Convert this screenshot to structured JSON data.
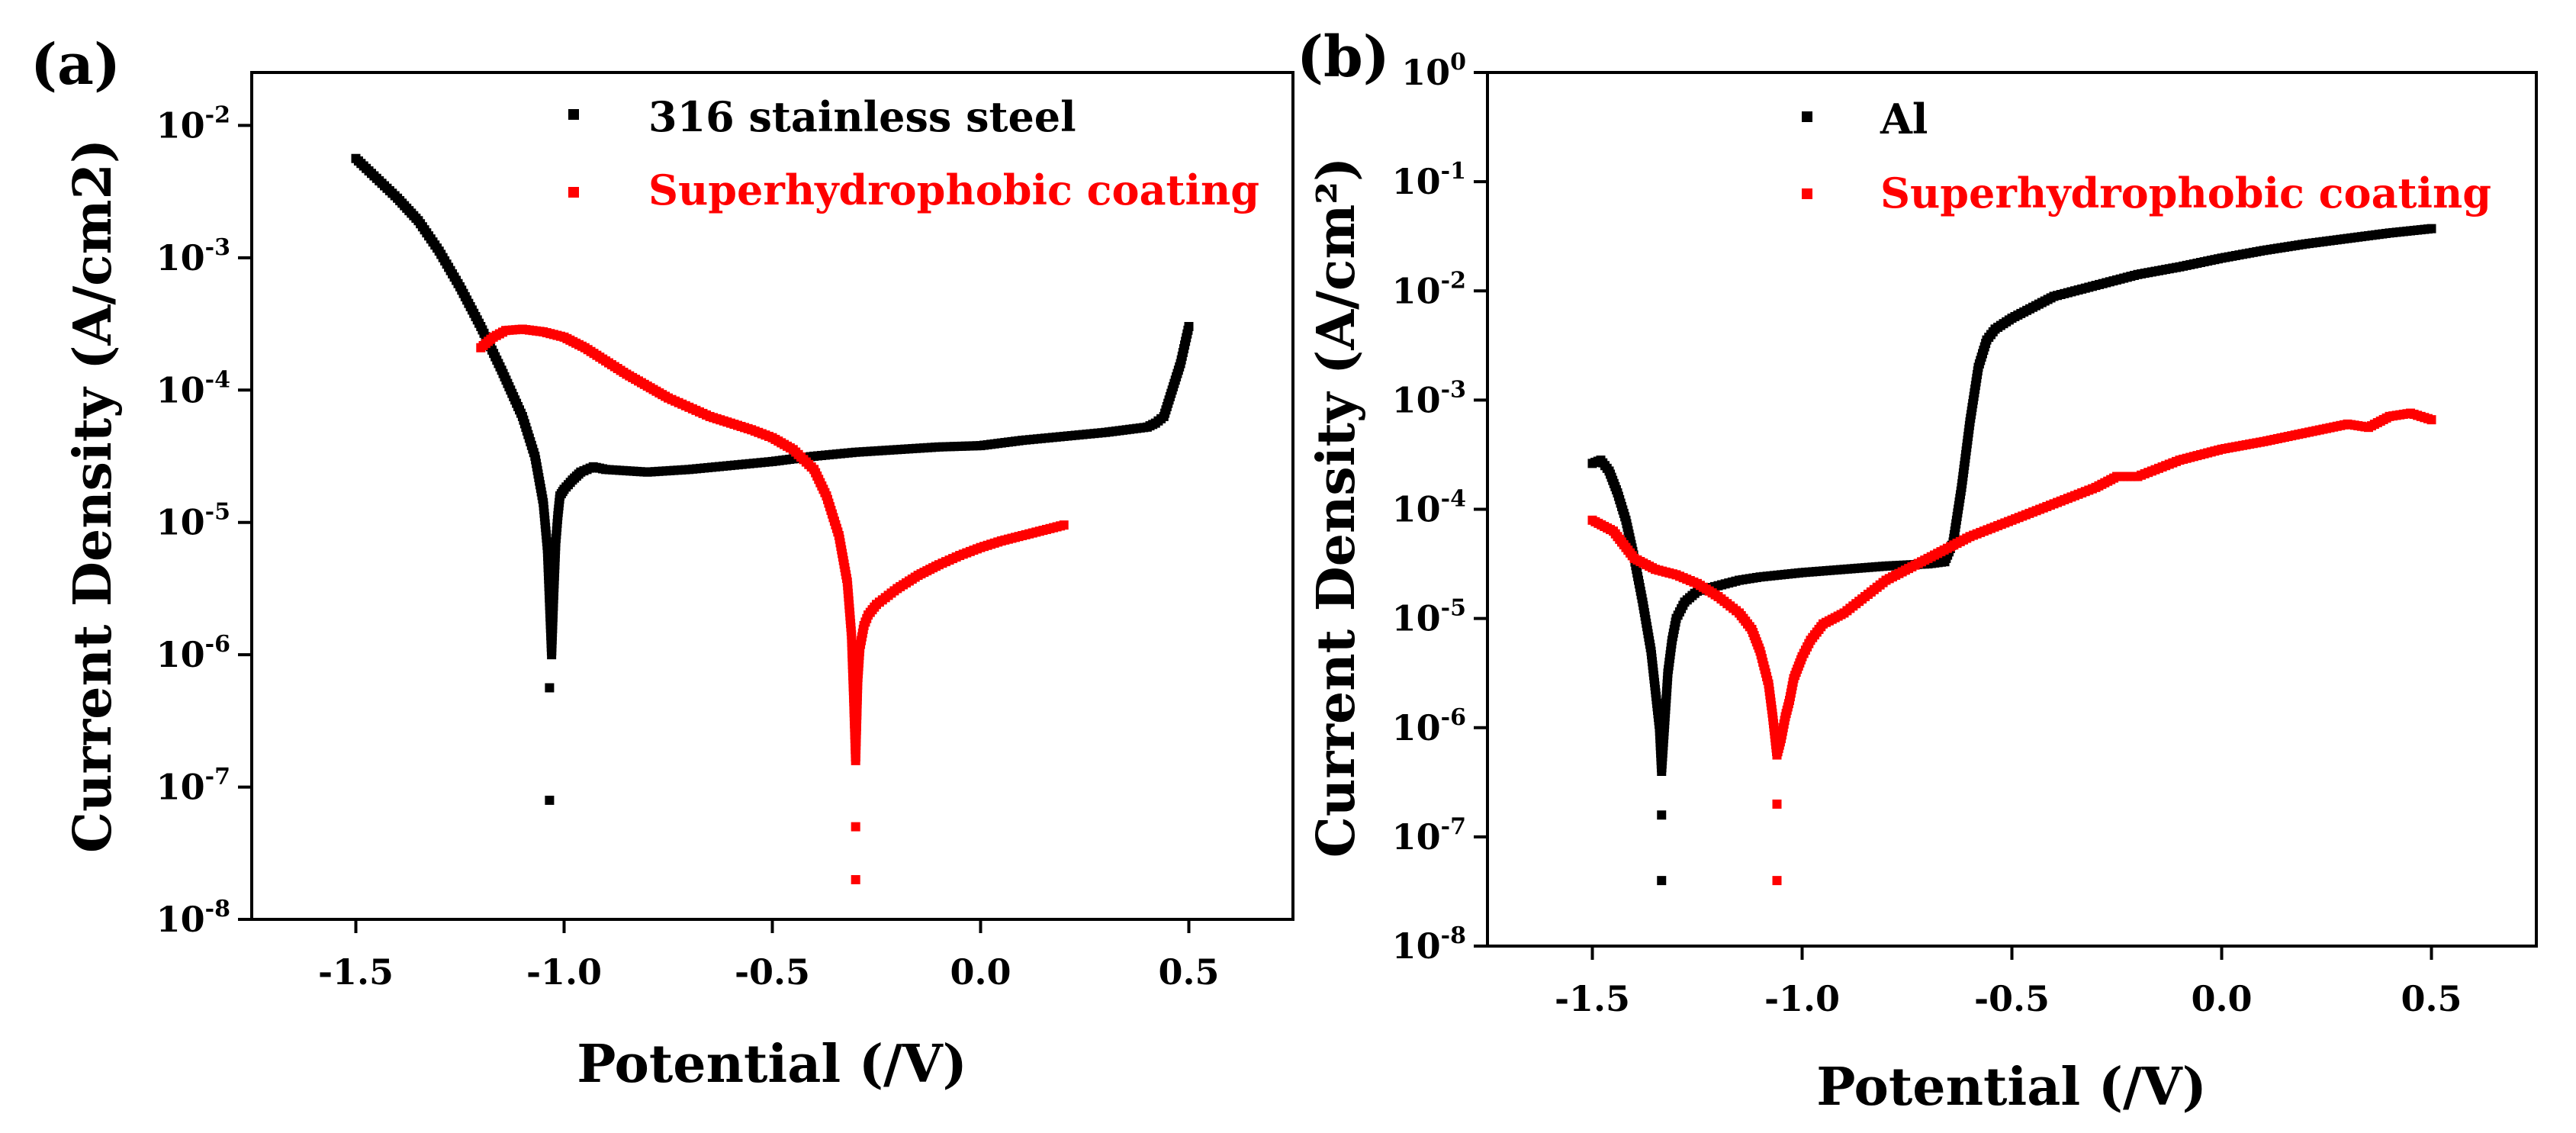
{
  "chart_data": [
    {
      "type": "scatter",
      "panel_label": "(a)",
      "xlabel": "Potential (/V)",
      "ylabel": "Current Density (A/cm2)",
      "yscale": "log",
      "xlim": [
        -1.75,
        0.75
      ],
      "ylim_exp": [
        -8,
        -1.6
      ],
      "xticks": [
        "-1.5",
        "-1.0",
        "-0.5",
        "0.0",
        "0.5"
      ],
      "xtick_values": [
        -1.5,
        -1.0,
        -0.5,
        0.0,
        0.5
      ],
      "ytick_exponents": [
        "-8",
        "-7",
        "-6",
        "-5",
        "-4",
        "-3",
        "-2"
      ],
      "ytick_base": "10",
      "legend": [
        "316 stainless steel",
        "Superhydrophobic coating"
      ],
      "series": [
        {
          "name": "316 stainless steel",
          "color": "#000000",
          "x": [
            -1.5,
            -1.45,
            -1.4,
            -1.35,
            -1.3,
            -1.25,
            -1.2,
            -1.15,
            -1.1,
            -1.07,
            -1.05,
            -1.04,
            -1.035,
            -1.03,
            -1.025,
            -1.02,
            -1.015,
            -1.01,
            -1.0,
            -0.98,
            -0.96,
            -0.93,
            -0.9,
            -0.85,
            -0.8,
            -0.7,
            -0.6,
            -0.5,
            -0.4,
            -0.3,
            -0.2,
            -0.1,
            0.0,
            0.1,
            0.2,
            0.3,
            0.4,
            0.42,
            0.44,
            0.46,
            0.48,
            0.5
          ],
          "y_log": [
            -2.25,
            -2.4,
            -2.55,
            -2.72,
            -2.95,
            -3.22,
            -3.52,
            -3.85,
            -4.2,
            -4.5,
            -4.85,
            -5.2,
            -5.6,
            -6.0,
            -5.55,
            -5.15,
            -4.95,
            -4.8,
            -4.75,
            -4.68,
            -4.62,
            -4.58,
            -4.6,
            -4.61,
            -4.62,
            -4.6,
            -4.57,
            -4.54,
            -4.5,
            -4.47,
            -4.45,
            -4.43,
            -4.42,
            -4.38,
            -4.35,
            -4.32,
            -4.28,
            -4.25,
            -4.2,
            -4.0,
            -3.8,
            -3.52
          ],
          "outliers": [
            {
              "x": -1.035,
              "y_log": -6.25
            },
            {
              "x": -1.035,
              "y_log": -7.1
            }
          ]
        },
        {
          "name": "Superhydrophobic coating",
          "color": "#ff0000",
          "x": [
            -1.2,
            -1.17,
            -1.14,
            -1.1,
            -1.05,
            -1.0,
            -0.95,
            -0.9,
            -0.85,
            -0.8,
            -0.75,
            -0.7,
            -0.65,
            -0.6,
            -0.55,
            -0.5,
            -0.45,
            -0.4,
            -0.37,
            -0.34,
            -0.32,
            -0.31,
            -0.305,
            -0.3,
            -0.295,
            -0.29,
            -0.28,
            -0.27,
            -0.25,
            -0.2,
            -0.15,
            -0.1,
            -0.05,
            0.0,
            0.05,
            0.1,
            0.15,
            0.2
          ],
          "y_log": [
            -3.68,
            -3.6,
            -3.55,
            -3.54,
            -3.56,
            -3.6,
            -3.68,
            -3.78,
            -3.88,
            -3.97,
            -4.06,
            -4.13,
            -4.2,
            -4.25,
            -4.3,
            -4.36,
            -4.45,
            -4.6,
            -4.8,
            -5.1,
            -5.45,
            -5.85,
            -6.3,
            -6.8,
            -6.2,
            -5.95,
            -5.78,
            -5.7,
            -5.62,
            -5.5,
            -5.4,
            -5.32,
            -5.25,
            -5.19,
            -5.14,
            -5.1,
            -5.06,
            -5.02
          ],
          "outliers": [
            {
              "x": -0.3,
              "y_log": -7.3
            },
            {
              "x": -0.3,
              "y_log": -7.7
            }
          ]
        }
      ]
    },
    {
      "type": "scatter",
      "panel_label": "(b)",
      "xlabel": "Potential (/V)",
      "ylabel": "Current Density (A/cm²)",
      "yscale": "log",
      "xlim": [
        -1.75,
        0.75
      ],
      "ylim_exp": [
        -8,
        0
      ],
      "xticks": [
        "-1.5",
        "-1.0",
        "-0.5",
        "0.0",
        "0.5"
      ],
      "xtick_values": [
        -1.5,
        -1.0,
        -0.5,
        0.0,
        0.5
      ],
      "ytick_exponents": [
        "-8",
        "-7",
        "-6",
        "-5",
        "-4",
        "-3",
        "-2",
        "-1",
        "0"
      ],
      "ytick_base": "10",
      "legend": [
        "Al",
        "Superhydrophobic coating"
      ],
      "series": [
        {
          "name": "Al",
          "color": "#000000",
          "x": [
            -1.5,
            -1.48,
            -1.46,
            -1.44,
            -1.42,
            -1.4,
            -1.38,
            -1.36,
            -1.35,
            -1.34,
            -1.335,
            -1.33,
            -1.325,
            -1.32,
            -1.31,
            -1.3,
            -1.28,
            -1.25,
            -1.2,
            -1.15,
            -1.1,
            -1.0,
            -0.9,
            -0.8,
            -0.7,
            -0.66,
            -0.64,
            -0.62,
            -0.6,
            -0.58,
            -0.56,
            -0.54,
            -0.5,
            -0.45,
            -0.4,
            -0.3,
            -0.2,
            -0.1,
            0.0,
            0.1,
            0.2,
            0.3,
            0.4,
            0.5
          ],
          "y_log": [
            -3.58,
            -3.55,
            -3.65,
            -3.85,
            -4.1,
            -4.45,
            -4.85,
            -5.3,
            -5.65,
            -6.0,
            -6.4,
            -6.1,
            -5.8,
            -5.5,
            -5.2,
            -5.0,
            -4.85,
            -4.75,
            -4.7,
            -4.65,
            -4.62,
            -4.58,
            -4.55,
            -4.52,
            -4.5,
            -4.48,
            -4.3,
            -3.8,
            -3.2,
            -2.7,
            -2.45,
            -2.35,
            -2.25,
            -2.15,
            -2.05,
            -1.95,
            -1.85,
            -1.78,
            -1.7,
            -1.63,
            -1.57,
            -1.52,
            -1.47,
            -1.43
          ],
          "outliers": [
            {
              "x": -1.335,
              "y_log": -6.8
            },
            {
              "x": -1.335,
              "y_log": -7.4
            }
          ]
        },
        {
          "name": "Superhydrophobic coating",
          "color": "#ff0000",
          "x": [
            -1.5,
            -1.45,
            -1.4,
            -1.35,
            -1.3,
            -1.25,
            -1.2,
            -1.15,
            -1.12,
            -1.1,
            -1.08,
            -1.07,
            -1.06,
            -1.05,
            -1.04,
            -1.03,
            -1.02,
            -1.0,
            -0.98,
            -0.95,
            -0.9,
            -0.85,
            -0.8,
            -0.7,
            -0.6,
            -0.5,
            -0.4,
            -0.3,
            -0.25,
            -0.2,
            -0.1,
            0.0,
            0.1,
            0.2,
            0.3,
            0.35,
            0.4,
            0.45,
            0.5
          ],
          "y_log": [
            -4.1,
            -4.2,
            -4.45,
            -4.55,
            -4.6,
            -4.68,
            -4.8,
            -4.95,
            -5.1,
            -5.3,
            -5.6,
            -5.9,
            -6.25,
            -6.1,
            -5.9,
            -5.75,
            -5.55,
            -5.35,
            -5.2,
            -5.05,
            -4.95,
            -4.8,
            -4.65,
            -4.45,
            -4.25,
            -4.1,
            -3.95,
            -3.8,
            -3.7,
            -3.7,
            -3.55,
            -3.45,
            -3.38,
            -3.3,
            -3.22,
            -3.25,
            -3.15,
            -3.12,
            -3.18
          ],
          "outliers": [
            {
              "x": -1.06,
              "y_log": -6.7
            },
            {
              "x": -1.06,
              "y_log": -7.4
            }
          ]
        }
      ]
    }
  ]
}
